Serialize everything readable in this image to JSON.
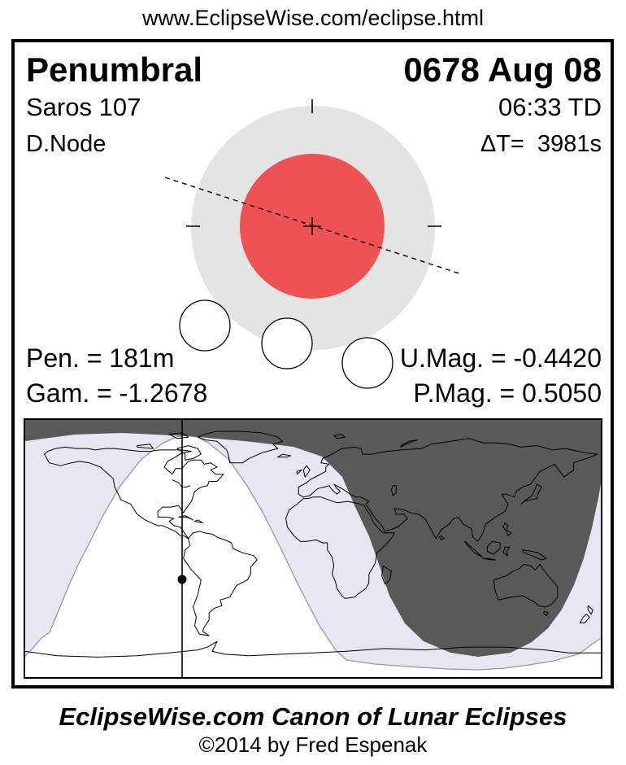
{
  "header": {
    "url": "www.EclipseWise.com/eclipse.html"
  },
  "card": {
    "eclipse_type": "Penumbral",
    "date": "0678 Aug 08",
    "saros": "Saros 107",
    "time": "06:33 TD",
    "node": "D.Node",
    "delta_t": "ΔT=  3981s",
    "stats": {
      "pen_duration": "Pen. = 181m",
      "gamma": "Gam. = -1.2678",
      "umbral_magnitude": "U.Mag. = -0.4420",
      "penumbral_magnitude": "P.Mag. = 0.5050"
    }
  },
  "footer": {
    "title": "EclipseWise.com Canon of Lunar Eclipses",
    "copyright": "©2014 by Fred Espenak"
  },
  "colors": {
    "umbra": "#ee5253",
    "penumbra": "#e4e4e4",
    "map_no_eclipse": "#595959",
    "map_partial": "#e7e7f3",
    "map_visible": "#ffffff",
    "boundary_line": "#999999",
    "ink": "#000000"
  }
}
